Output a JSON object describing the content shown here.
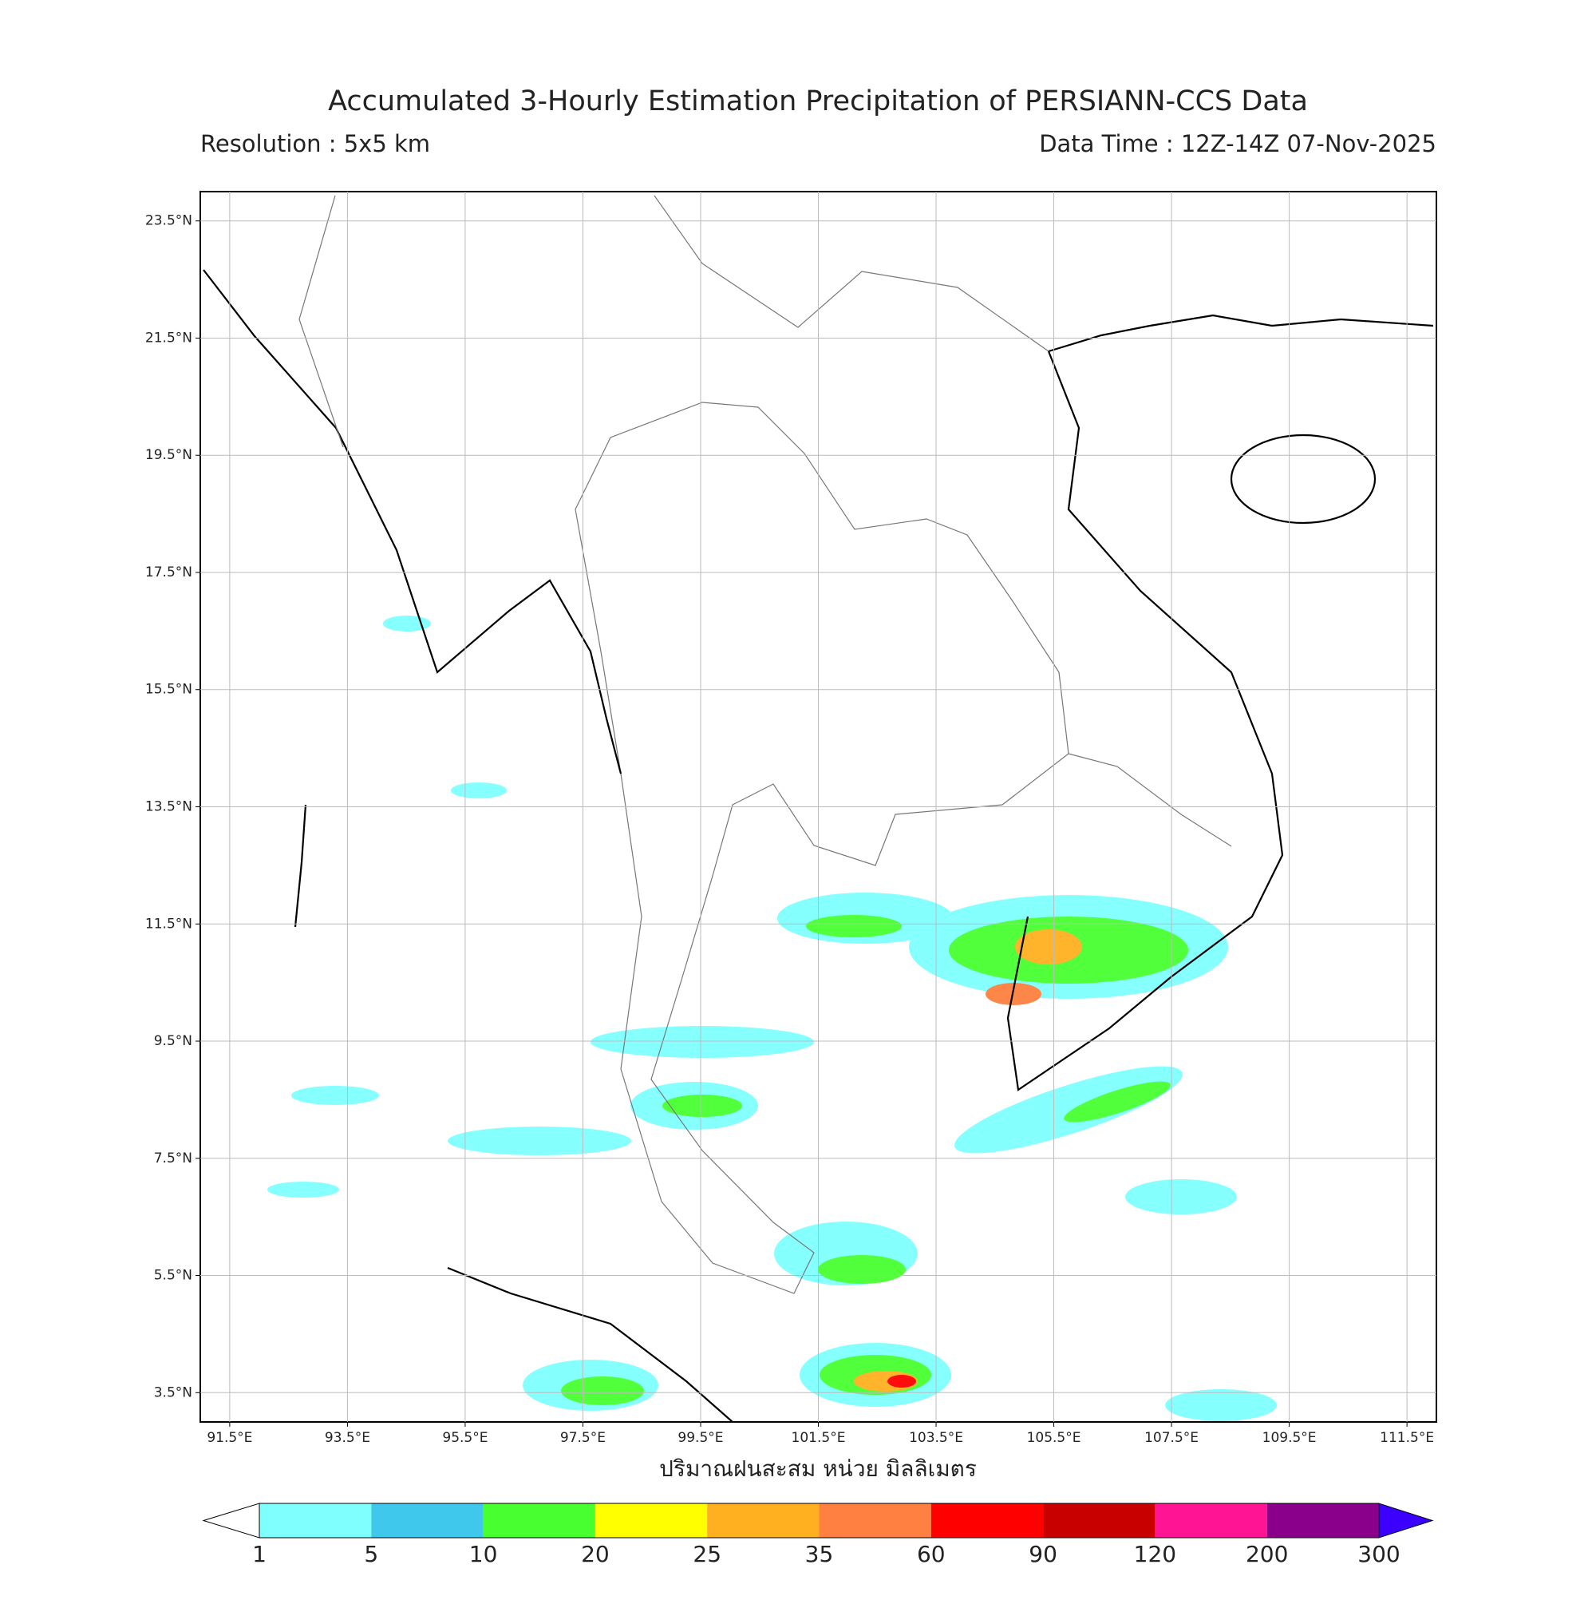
{
  "title": "Accumulated 3-Hourly Estimation Precipitation of PERSIANN-CCS Data",
  "resolution": "Resolution : 5x5 km",
  "data_time": "Data Time : 12Z-14Z 07-Nov-2025",
  "map": {
    "lon_range": [
      91,
      112
    ],
    "lat_range": [
      3,
      24
    ],
    "grid": true,
    "lat_ticks": [
      {
        "value": 23.5,
        "label": "23.5°N"
      },
      {
        "value": 21.5,
        "label": "21.5°N"
      },
      {
        "value": 19.5,
        "label": "19.5°N"
      },
      {
        "value": 17.5,
        "label": "17.5°N"
      },
      {
        "value": 15.5,
        "label": "15.5°N"
      },
      {
        "value": 13.5,
        "label": "13.5°N"
      },
      {
        "value": 11.5,
        "label": "11.5°N"
      },
      {
        "value": 9.5,
        "label": "9.5°N"
      },
      {
        "value": 7.5,
        "label": "7.5°N"
      },
      {
        "value": 5.5,
        "label": "5.5°N"
      },
      {
        "value": 3.5,
        "label": "3.5°N"
      }
    ],
    "lon_ticks": [
      {
        "value": 91.5,
        "label": "91.5°E"
      },
      {
        "value": 93.5,
        "label": "93.5°E"
      },
      {
        "value": 95.5,
        "label": "95.5°E"
      },
      {
        "value": 97.5,
        "label": "97.5°E"
      },
      {
        "value": 99.5,
        "label": "99.5°E"
      },
      {
        "value": 101.5,
        "label": "101.5°E"
      },
      {
        "value": 103.5,
        "label": "103.5°E"
      },
      {
        "value": 105.5,
        "label": "105.5°E"
      },
      {
        "value": 107.5,
        "label": "107.5°E"
      },
      {
        "value": 109.5,
        "label": "109.5°E"
      },
      {
        "value": 111.5,
        "label": "111.5°E"
      }
    ]
  },
  "x_label": "ปริมาณฝนสะสม หน่วย มิลลิเมตร",
  "colorbar": {
    "labels": [
      "1",
      "5",
      "10",
      "20",
      "25",
      "35",
      "60",
      "90",
      "120",
      "200",
      "300"
    ],
    "colors": [
      "#80ffff",
      "#40c8ec",
      "#48ff30",
      "#ffff00",
      "#ffb020",
      "#ff8040",
      "#ff0000",
      "#c80000",
      "#ff1493",
      "#8b008b"
    ],
    "under_color": "#ffffff",
    "over_color": "#3b00ff"
  }
}
